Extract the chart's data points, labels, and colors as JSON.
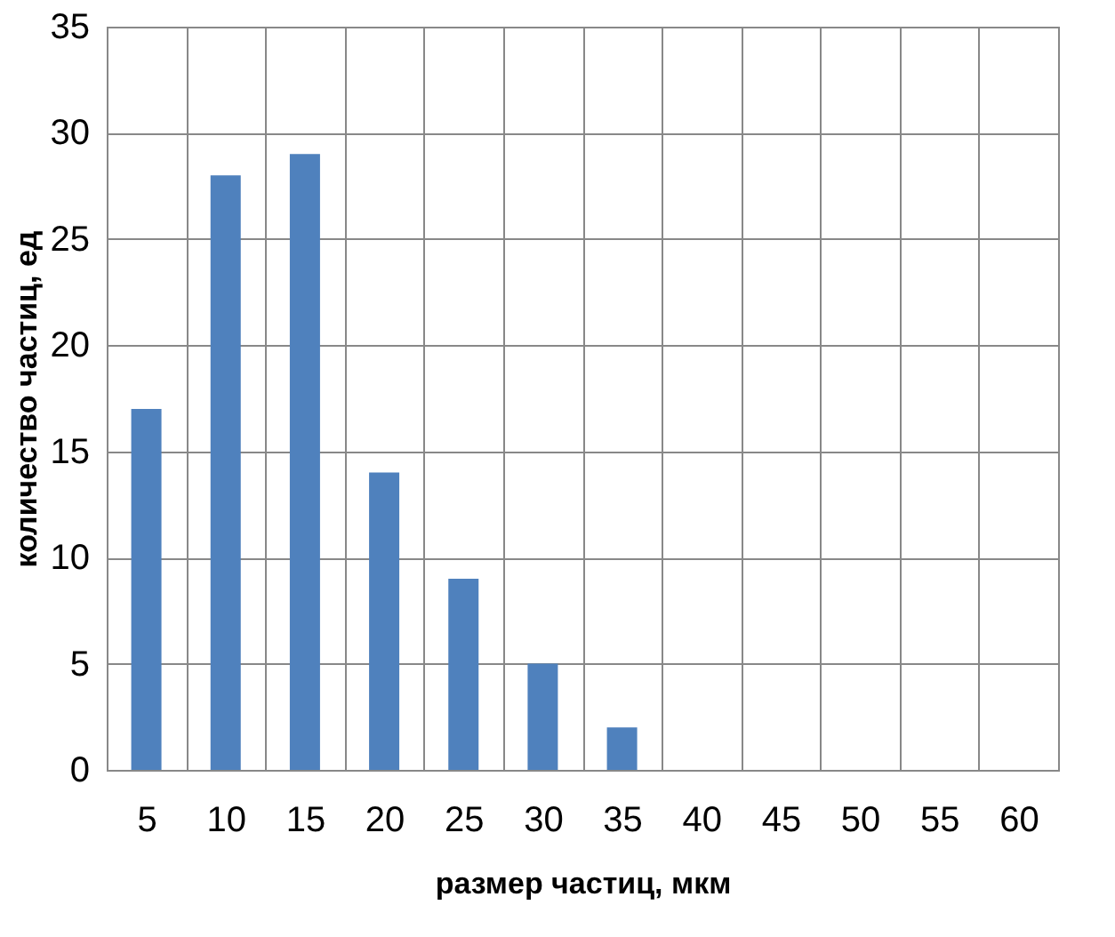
{
  "chart_data": {
    "type": "bar",
    "xlabel": "размер частиц, мкм",
    "ylabel": "количество частиц, ед",
    "categories": [
      "5",
      "10",
      "15",
      "20",
      "25",
      "30",
      "35",
      "40",
      "45",
      "50",
      "55",
      "60"
    ],
    "values": [
      17,
      28,
      29,
      14,
      9,
      5,
      2,
      0,
      0,
      0,
      0,
      0
    ],
    "color": "#4f81bd",
    "ylim": [
      0,
      35
    ],
    "yticks": [
      0,
      5,
      10,
      15,
      20,
      25,
      30,
      35
    ],
    "grid": true
  }
}
